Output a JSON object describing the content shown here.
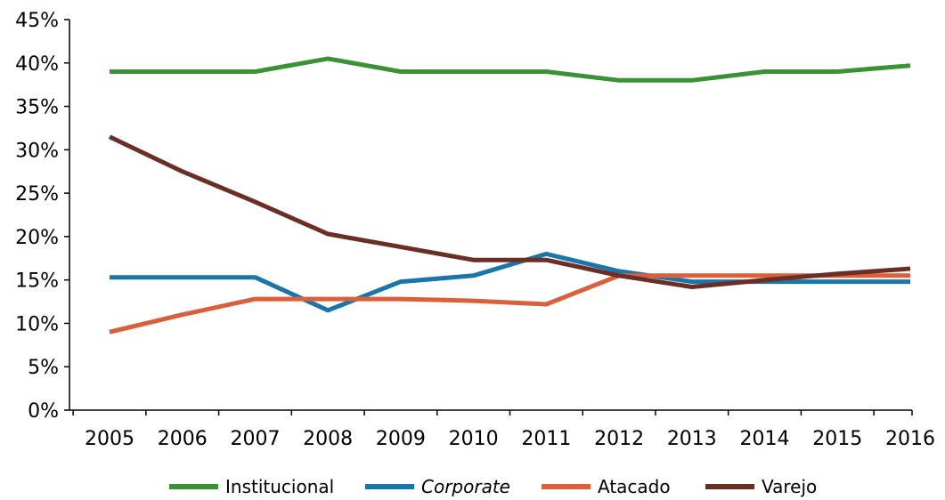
{
  "chart_data": {
    "type": "line",
    "categories": [
      "2005",
      "2006",
      "2007",
      "2008",
      "2009",
      "2010",
      "2011",
      "2012",
      "2013",
      "2014",
      "2015",
      "2016"
    ],
    "ylim": [
      0,
      45
    ],
    "yticks": [
      "0%",
      "5%",
      "10%",
      "15%",
      "20%",
      "25%",
      "30%",
      "35%",
      "40%",
      "45%"
    ],
    "grid": false,
    "legend_position": "bottom",
    "series": [
      {
        "name": "Institucional",
        "color": "#3a9235",
        "italic": false,
        "values": [
          39,
          39,
          39,
          40.5,
          39,
          39,
          39,
          38,
          38,
          39,
          39,
          39.7
        ]
      },
      {
        "name": "Corporate",
        "color": "#1a75a8",
        "italic": true,
        "values": [
          15.3,
          15.3,
          15.3,
          11.5,
          14.8,
          15.5,
          18,
          16,
          14.8,
          14.8,
          14.8,
          14.8
        ]
      },
      {
        "name": "Atacado",
        "color": "#d9603b",
        "italic": false,
        "values": [
          9,
          11,
          12.8,
          12.8,
          12.8,
          12.6,
          12.2,
          15.5,
          15.5,
          15.5,
          15.5,
          15.5
        ]
      },
      {
        "name": "Varejo",
        "color": "#6b2e25",
        "italic": false,
        "values": [
          31.5,
          27.5,
          24,
          20.3,
          18.8,
          17.3,
          17.3,
          15.5,
          14.2,
          15,
          15.7,
          16.3
        ]
      }
    ]
  }
}
